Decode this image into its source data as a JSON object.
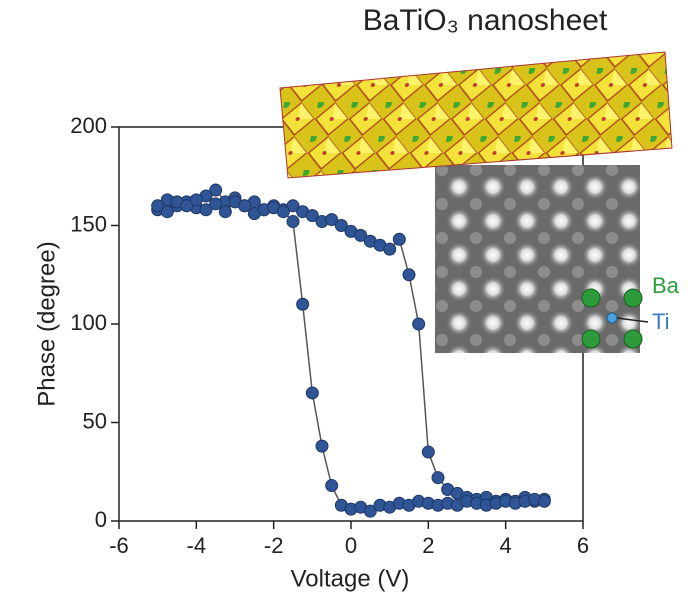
{
  "chart_data": {
    "type": "line",
    "title": "BaTiO₃ nanosheet",
    "x_label": "Voltage (V)",
    "y_label": "Phase (degree)",
    "annotations": [
      "Ba",
      "Ti"
    ],
    "x": [
      -5,
      -4.75,
      -4.5,
      -4.25,
      -4,
      -3.75,
      -3.5,
      -3.25,
      -3,
      -2.75,
      -2.5,
      -2.25,
      -2,
      -1.75,
      -1.5,
      -1.25,
      -1,
      -0.75,
      -0.5,
      -0.25,
      0,
      0.25,
      0.5,
      0.75,
      1,
      1.25,
      1.5,
      1.75,
      2,
      2.25,
      2.5,
      2.75,
      3,
      3.25,
      3.5,
      3.75,
      4,
      4.25,
      4.5,
      4.75,
      5
    ],
    "series": [
      {
        "color": "#2f5597",
        "values": [
          158,
          163,
          160,
          162,
          159,
          165,
          168,
          162,
          164,
          160,
          162,
          158,
          160,
          158,
          160,
          157,
          155,
          152,
          153,
          150,
          147,
          145,
          142,
          140,
          138,
          143,
          125,
          100,
          35,
          22,
          16,
          14,
          12,
          11,
          12,
          10,
          11,
          10,
          12,
          10,
          11
        ]
      },
      {
        "color": "#2f5597",
        "values": [
          160,
          157,
          162,
          160,
          163,
          158,
          161,
          157,
          162,
          160,
          156,
          158,
          159,
          157,
          152,
          110,
          65,
          38,
          18,
          8,
          6,
          7,
          5,
          8,
          7,
          9,
          8,
          10,
          9,
          8,
          9,
          8,
          10,
          9,
          8,
          9,
          10,
          9,
          10,
          11,
          10
        ]
      }
    ],
    "xlim": [
      -6,
      6
    ],
    "xticks": [
      -6,
      -4,
      -2,
      0,
      2,
      4,
      6
    ],
    "ylim": [
      0,
      200
    ],
    "yticks": [
      0,
      50,
      100,
      150,
      200
    ],
    "line_color": "#555555"
  }
}
